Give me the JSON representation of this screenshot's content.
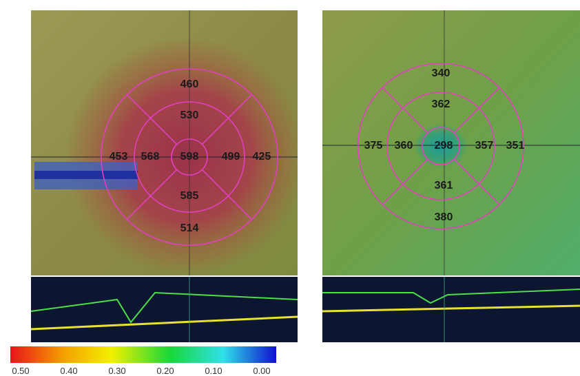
{
  "left_map": {
    "values": [
      460,
      530,
      453,
      568,
      598,
      499,
      425,
      585,
      514
    ]
  },
  "right_map": {
    "values": [
      340,
      362,
      375,
      360,
      298,
      357,
      351,
      361,
      380
    ]
  },
  "color_scale": {
    "labels": [
      "0.50",
      "0.40",
      "0.30",
      "0.20",
      "0.10",
      "0.00"
    ]
  }
}
